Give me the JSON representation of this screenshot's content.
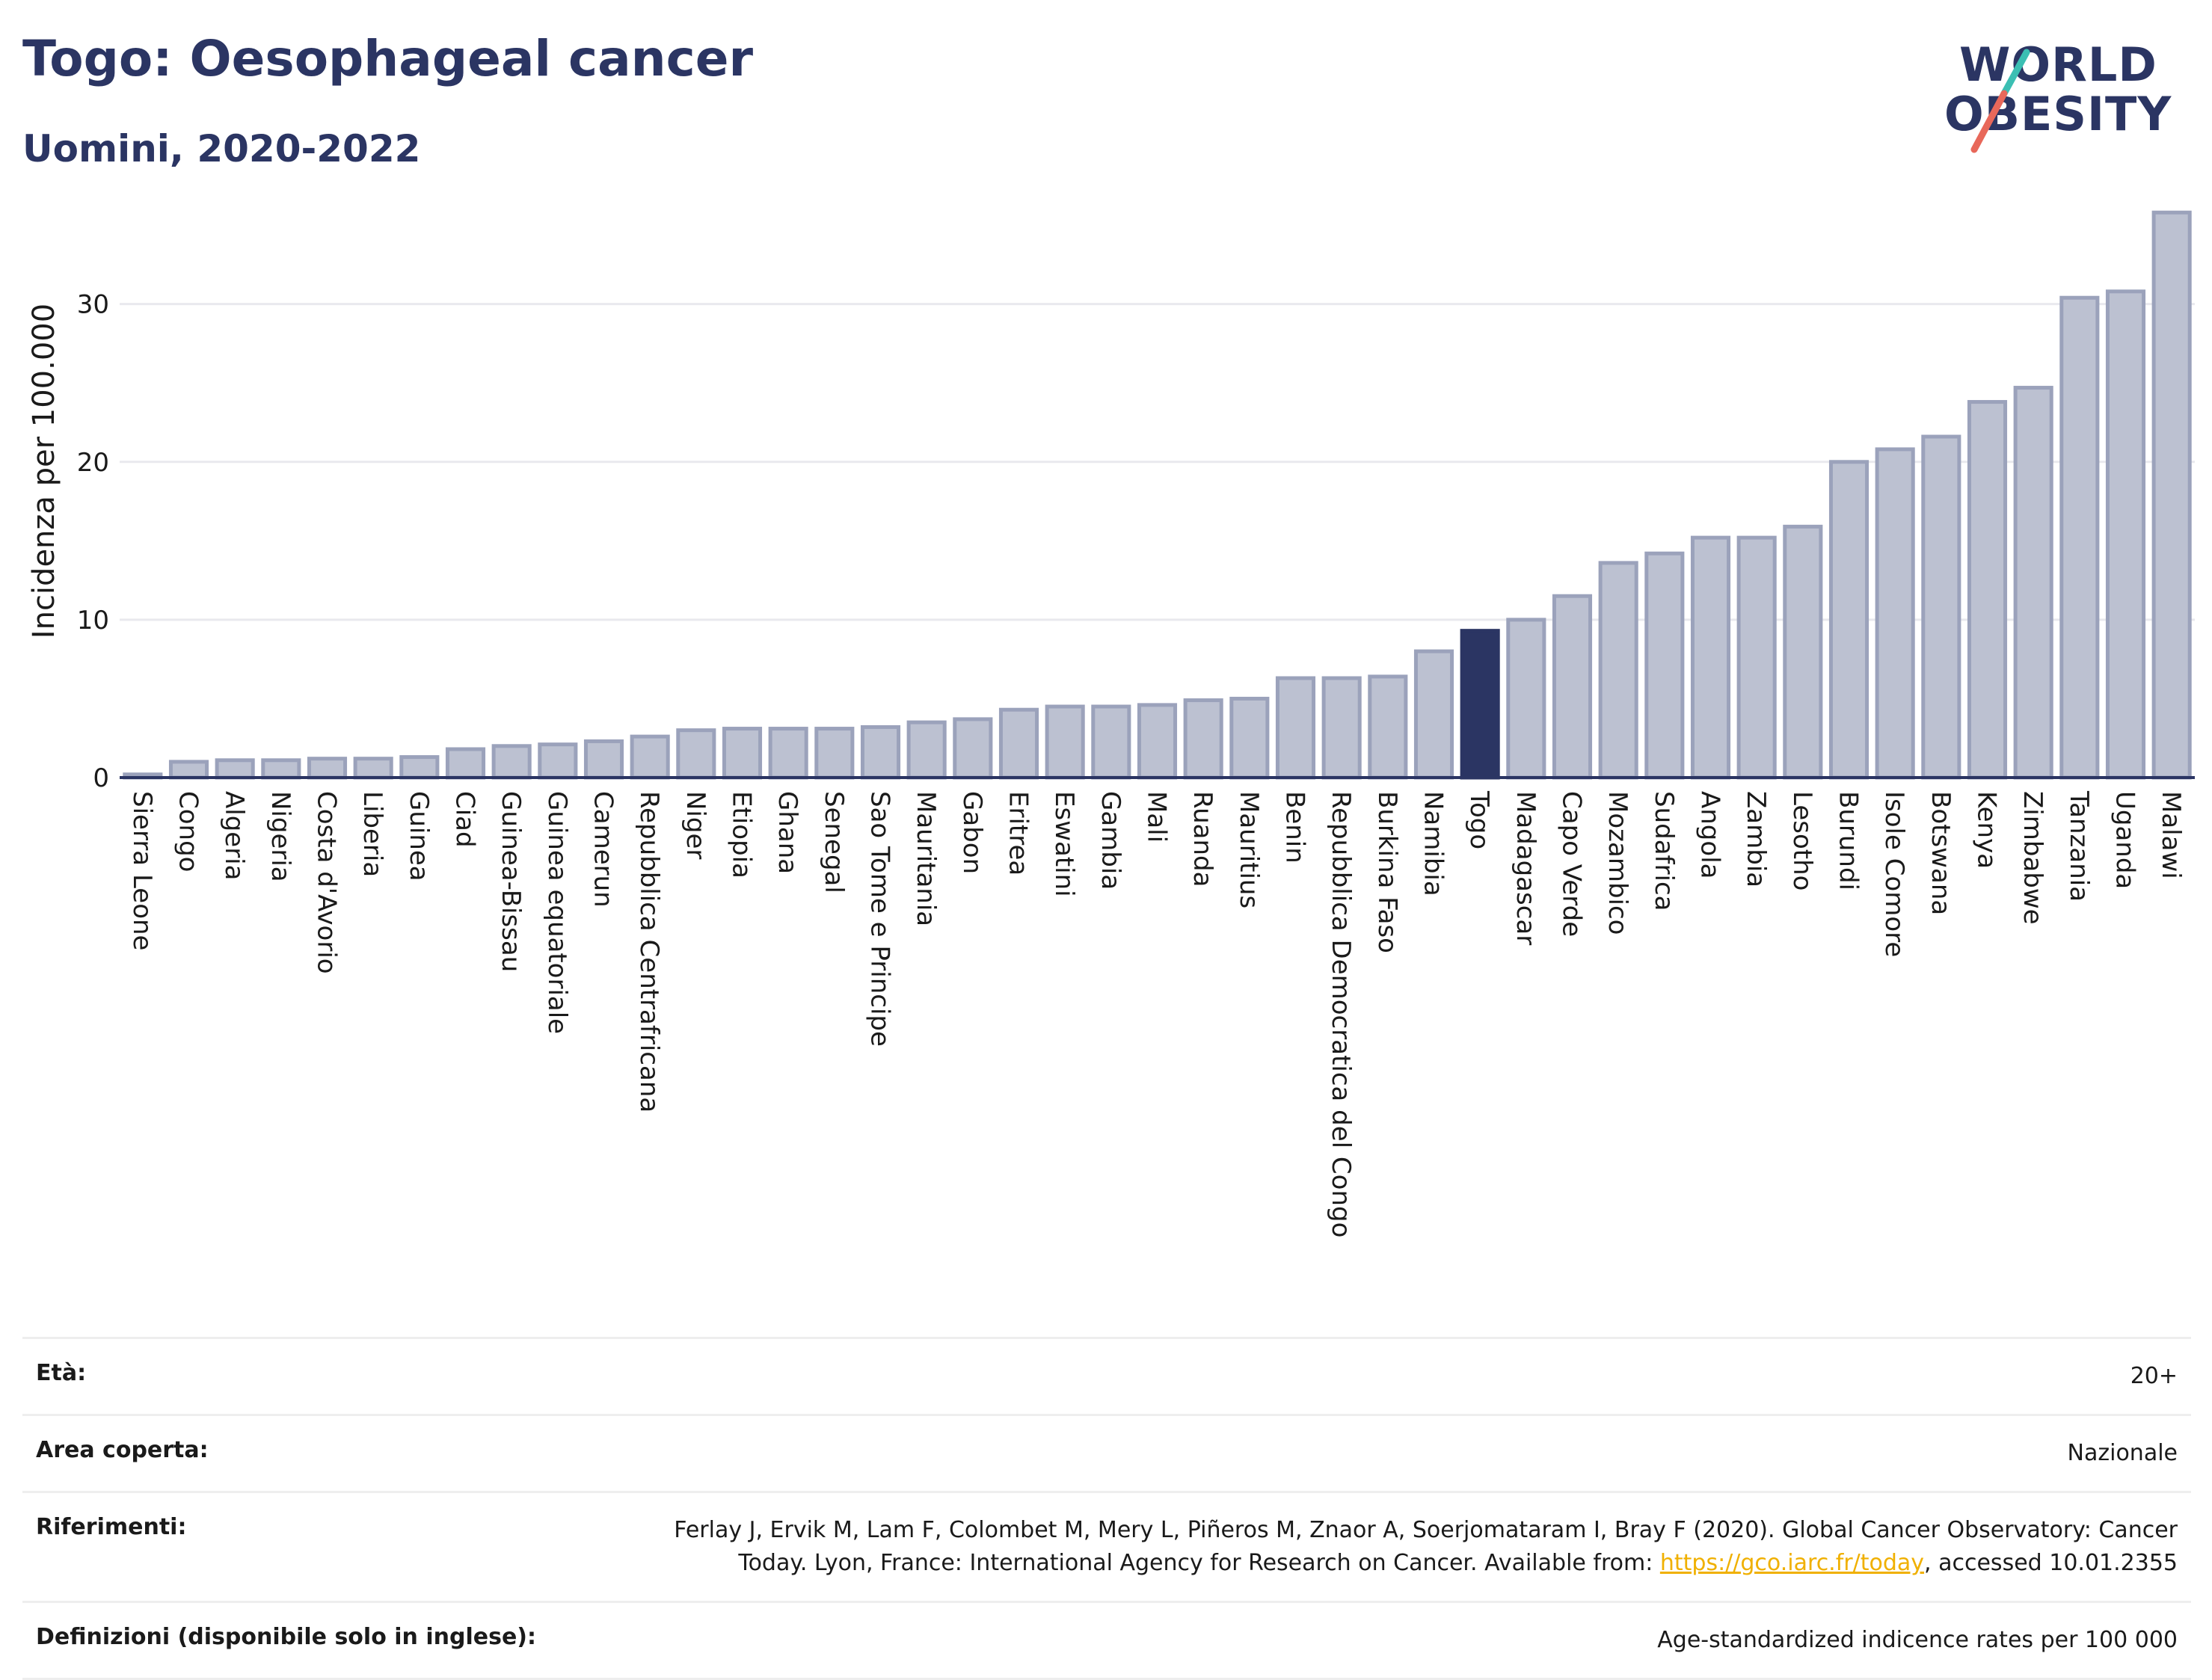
{
  "header": {
    "title": "Togo: Oesophageal cancer",
    "subtitle": "Uomini, 2020-2022"
  },
  "logo": {
    "line1": "WORLD",
    "line2": "OBESITY",
    "accent_colors": [
      "#3bbfb3",
      "#e8685a"
    ]
  },
  "colors": {
    "bar": "#bcc1d1",
    "bar_border": "#9ba2bb",
    "highlight": "#2b3563",
    "gridline": "#e9e9ee",
    "axis": "#2b3563"
  },
  "chart_data": {
    "type": "bar",
    "title": "Togo: Oesophageal cancer",
    "subtitle": "Uomini, 2020-2022",
    "ylabel": "Incidenza per 100.000",
    "xlabel": "",
    "ylim": [
      0,
      36
    ],
    "yticks": [
      0,
      10,
      20,
      30
    ],
    "grid": true,
    "highlight": "Togo",
    "categories": [
      "Sierra Leone",
      "Congo",
      "Algeria",
      "Nigeria",
      "Costa d'Avorio",
      "Liberia",
      "Guinea",
      "Ciad",
      "Guinea-Bissau",
      "Guinea equatoriale",
      "Camerun",
      "Repubblica Centrafricana",
      "Niger",
      "Etiopia",
      "Ghana",
      "Senegal",
      "Sao Tome e Principe",
      "Mauritania",
      "Gabon",
      "Eritrea",
      "Eswatini",
      "Gambia",
      "Mali",
      "Ruanda",
      "Mauritius",
      "Benin",
      "Repubblica Democratica del Congo",
      "Burkina Faso",
      "Namibia",
      "Togo",
      "Madagascar",
      "Capo Verde",
      "Mozambico",
      "Sudafrica",
      "Angola",
      "Zambia",
      "Lesotho",
      "Burundi",
      "Isole Comore",
      "Botswana",
      "Kenya",
      "Zimbabwe",
      "Tanzania",
      "Uganda",
      "Malawi"
    ],
    "values": [
      0.2,
      1.0,
      1.1,
      1.1,
      1.2,
      1.2,
      1.3,
      1.8,
      2.0,
      2.1,
      2.3,
      2.6,
      3.0,
      3.1,
      3.1,
      3.1,
      3.2,
      3.5,
      3.7,
      4.3,
      4.5,
      4.5,
      4.6,
      4.9,
      5.0,
      6.3,
      6.3,
      6.4,
      8.0,
      9.3,
      10.0,
      11.5,
      13.6,
      14.2,
      15.2,
      15.2,
      15.9,
      20.0,
      20.8,
      21.6,
      23.8,
      24.7,
      30.4,
      30.8,
      35.8
    ]
  },
  "meta": {
    "rows": [
      {
        "label": "Età:",
        "value": "20+"
      },
      {
        "label": "Area coperta:",
        "value": "Nazionale"
      },
      {
        "label": "Riferimenti:",
        "value_line1": "Ferlay J, Ervik M, Lam F, Colombet M, Mery L, Piñeros M, Znaor A, Soerjomataram I, Bray F (2020). Global Cancer Observatory: Cancer",
        "value_line2_pre": "Today. Lyon, France: International Agency for Research on Cancer. Available from: ",
        "link": "https://gco.iarc.fr/today",
        "value_line2_post": ", accessed 10.01.2355"
      },
      {
        "label": "Definizioni (disponibile solo in inglese):",
        "value": "Age-standardized indicence rates per 100 000"
      }
    ]
  }
}
